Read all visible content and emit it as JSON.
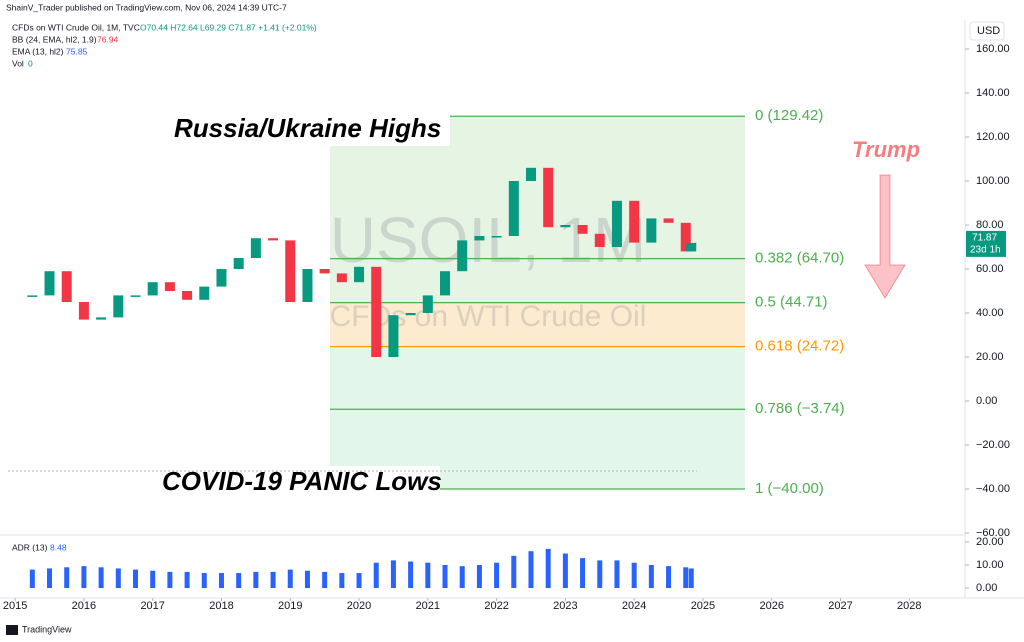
{
  "header": {
    "author": "ShainV_Trader published on TradingView.com, Nov 06, 2024 14:39 UTC-7",
    "symbol": "CFDs on WTI Crude Oil, 1M, TVC",
    "ohlc": "O70.44 H72.64 L69.29 C71.87 +1.41 (+2.01%)",
    "indicators": [
      {
        "name": "BB (24, EMA, hl2, 1.9)",
        "value": "76.94"
      },
      {
        "name": "EMA (13, hl2)",
        "value": "75.85"
      },
      {
        "name": "Vol",
        "value": "0"
      }
    ]
  },
  "footer": "TradingView",
  "currency": "USD",
  "chart_data": [
    {
      "type": "candlestick",
      "watermark": "USOIL, 1M",
      "watermark_subtitle": "CFDs on WTI Crude Oil",
      "annotations": [
        "Russia/Ukraine Highs",
        "COVID-19 PANIC Lows",
        "Trump"
      ],
      "x": [
        2015.25,
        2015.5,
        2015.75,
        2016.0,
        2016.25,
        2016.5,
        2016.75,
        2017.0,
        2017.25,
        2017.5,
        2017.75,
        2018.0,
        2018.25,
        2018.5,
        2018.75,
        2019.0,
        2019.25,
        2019.5,
        2019.75,
        2020.0,
        2020.25,
        2020.5,
        2020.75,
        2021.0,
        2021.25,
        2021.5,
        2021.75,
        2022.0,
        2022.25,
        2022.5,
        2022.75,
        2023.0,
        2023.25,
        2023.5,
        2023.75,
        2024.0,
        2024.25,
        2024.5,
        2024.75,
        2024.83
      ],
      "series": [
        {
          "name": "USOIL",
          "up_color": "#089981",
          "down_color": "#f23645",
          "values": [
            48,
            59,
            45,
            37,
            38,
            48,
            48,
            54,
            50,
            46,
            52,
            60,
            65,
            74,
            73,
            45,
            60,
            58,
            54,
            61,
            20,
            39,
            40,
            48,
            59,
            73,
            75,
            75,
            100,
            106,
            79,
            80,
            76,
            70,
            91,
            72,
            83,
            81,
            68,
            71.87
          ]
        }
      ],
      "last_price": {
        "value": 71.87,
        "label": "71.87",
        "countdown": "23d 1h",
        "color": "#089981"
      },
      "fib_levels": [
        {
          "value": 129.42,
          "label": "0 (129.42)",
          "color": "#4caf50"
        },
        {
          "value": 64.7,
          "label": "0.382 (64.70)",
          "color": "#4caf50"
        },
        {
          "value": 44.71,
          "label": "0.5 (44.71)",
          "color": "#4caf50"
        },
        {
          "value": 24.72,
          "label": "0.618 (24.72)",
          "color": "#ff9800"
        },
        {
          "value": -3.74,
          "label": "0.786 (−3.74)",
          "color": "#4caf50"
        },
        {
          "value": -40,
          "label": "1 (−40.00)",
          "color": "#4caf50"
        }
      ],
      "xlim": [
        2014.78,
        2028.81
      ],
      "xticks": [
        2015,
        2016,
        2017,
        2018,
        2019,
        2020,
        2021,
        2022,
        2023,
        2024,
        2025,
        2026,
        2027,
        2028
      ],
      "ylim": [
        -60,
        160
      ],
      "yticks": [
        {
          "value": 160,
          "label": "160.00"
        },
        {
          "value": 140,
          "label": "140.00"
        },
        {
          "value": 120,
          "label": "120.00"
        },
        {
          "value": 100,
          "label": "100.00"
        },
        {
          "value": 80,
          "label": "80.00"
        },
        {
          "value": 60,
          "label": "60.00"
        },
        {
          "value": 40,
          "label": "40.00"
        },
        {
          "value": 20,
          "label": "20.00"
        },
        {
          "value": 0,
          "label": "0.00"
        },
        {
          "value": -20,
          "label": "−20.00"
        },
        {
          "value": -40,
          "label": "−40.00"
        },
        {
          "value": -60,
          "label": "−60.00"
        }
      ]
    },
    {
      "type": "bar",
      "title": "ADR (13)",
      "current": "8.48",
      "color": "#2962ff",
      "values": [
        8,
        8.5,
        9,
        9.5,
        9,
        8.5,
        8,
        7.5,
        7,
        7,
        6.5,
        6.5,
        6.5,
        7,
        7,
        8,
        7.5,
        7,
        6.5,
        6.5,
        11,
        12,
        11.5,
        11,
        10,
        9.5,
        10,
        11,
        14,
        16,
        17,
        15,
        13,
        12,
        12,
        11,
        10,
        9.5,
        9,
        8.48
      ],
      "ylim": [
        0,
        20
      ],
      "yticks": [
        {
          "value": 20,
          "label": "20.00"
        },
        {
          "value": 10,
          "label": "10.00"
        },
        {
          "value": 0,
          "label": "0.00"
        }
      ]
    }
  ]
}
